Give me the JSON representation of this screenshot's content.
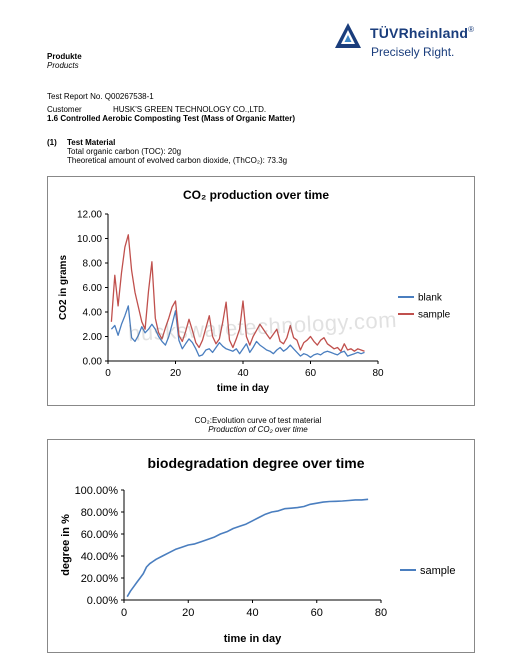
{
  "header": {
    "section_label": "Produkte",
    "section_label_italic": "Products",
    "brand_name": "TÜVRheinland",
    "brand_mark": "®",
    "slogan": "Precisely Right."
  },
  "report": {
    "report_no": "Test Report No. Q00267538-1",
    "customer_label": "Customer",
    "customer_name": "HUSK'S GREEN TECHNOLOGY CO.,LTD.",
    "test_title": "1.6 Controlled Aerobic Composting Test (Mass of Organic Matter)",
    "material_num": "(1)",
    "material_heading": "Test Material",
    "toc_line": "Total organic carbon (TOC):  20g",
    "theoretical_line": "Theoretical amount of evolved carbon dioxide, (ThCO₂): 73.3g"
  },
  "caption": {
    "line1": "CO₂:Evolution curve of test material",
    "line2": "Production of CO₂ over time"
  },
  "watermark": "huskswaretechnology.com",
  "chart_data": [
    {
      "type": "line",
      "title": "CO₂ production over time",
      "xlabel": "time in day",
      "ylabel": "CO2 in grams",
      "xlim": [
        0,
        80
      ],
      "ylim": [
        0,
        12
      ],
      "x_ticks": [
        "0",
        "20",
        "40",
        "60",
        "80"
      ],
      "y_ticks": [
        "0.00",
        "2.00",
        "4.00",
        "6.00",
        "8.00",
        "10.00",
        "12.00"
      ],
      "legend_position": "right",
      "series": [
        {
          "name": "blank",
          "color": "#4a7ebf",
          "x": [
            1,
            2,
            3,
            4,
            5,
            6,
            7,
            8,
            9,
            10,
            11,
            12,
            13,
            14,
            15,
            16,
            17,
            18,
            19,
            20,
            21,
            22,
            23,
            24,
            25,
            26,
            27,
            28,
            29,
            30,
            31,
            32,
            33,
            34,
            35,
            36,
            37,
            38,
            39,
            40,
            41,
            42,
            43,
            44,
            45,
            46,
            47,
            48,
            49,
            50,
            51,
            52,
            53,
            54,
            55,
            56,
            57,
            58,
            59,
            60,
            61,
            62,
            63,
            64,
            65,
            66,
            67,
            68,
            69,
            70,
            71,
            72,
            73,
            74,
            75,
            76
          ],
          "y": [
            2.6,
            2.9,
            2.1,
            3.0,
            3.7,
            4.5,
            1.9,
            1.6,
            2.1,
            2.8,
            2.3,
            2.6,
            3.0,
            2.6,
            2.0,
            1.6,
            1.3,
            2.0,
            3.0,
            4.1,
            1.7,
            1.0,
            1.4,
            1.8,
            1.5,
            1.0,
            0.4,
            0.5,
            0.9,
            1.0,
            0.7,
            1.1,
            1.5,
            1.2,
            1.0,
            0.9,
            0.8,
            1.0,
            0.6,
            1.0,
            1.4,
            0.7,
            1.1,
            1.6,
            1.3,
            1.1,
            0.9,
            0.8,
            0.6,
            0.9,
            1.1,
            0.8,
            1.0,
            1.3,
            1.0,
            0.7,
            0.4,
            0.6,
            0.5,
            0.3,
            0.5,
            0.6,
            0.5,
            0.7,
            0.8,
            0.7,
            0.6,
            0.5,
            0.7,
            0.8,
            0.4,
            0.5,
            0.6,
            0.7,
            0.6,
            0.7
          ]
        },
        {
          "name": "sample",
          "color": "#c0504d",
          "x": [
            1,
            2,
            3,
            4,
            5,
            6,
            7,
            8,
            9,
            10,
            11,
            12,
            13,
            14,
            15,
            16,
            17,
            18,
            19,
            20,
            21,
            22,
            23,
            24,
            25,
            26,
            27,
            28,
            29,
            30,
            31,
            32,
            33,
            34,
            35,
            36,
            37,
            38,
            39,
            40,
            41,
            42,
            43,
            44,
            45,
            46,
            47,
            48,
            49,
            50,
            51,
            52,
            53,
            54,
            55,
            56,
            57,
            58,
            59,
            60,
            61,
            62,
            63,
            64,
            65,
            66,
            67,
            68,
            69,
            70,
            71,
            72,
            73,
            74,
            75,
            76
          ],
          "y": [
            3.2,
            7.0,
            4.5,
            7.2,
            9.3,
            10.3,
            7.4,
            5.6,
            4.4,
            3.2,
            2.6,
            5.7,
            8.1,
            3.5,
            2.3,
            1.8,
            2.7,
            3.5,
            4.4,
            4.9,
            2.1,
            1.6,
            2.4,
            3.4,
            2.5,
            1.5,
            1.1,
            1.7,
            2.7,
            3.7,
            2.0,
            1.4,
            1.8,
            3.2,
            4.8,
            1.7,
            1.1,
            1.8,
            2.6,
            4.9,
            2.0,
            1.3,
            2.0,
            2.5,
            3.0,
            2.6,
            2.2,
            1.8,
            2.2,
            2.6,
            1.6,
            1.4,
            1.9,
            2.9,
            1.9,
            1.7,
            0.9,
            1.5,
            1.7,
            2.0,
            1.6,
            1.3,
            1.7,
            1.9,
            1.4,
            1.2,
            1.0,
            1.1,
            0.8,
            1.4,
            0.9,
            1.0,
            0.8,
            1.0,
            0.9,
            0.8
          ]
        }
      ]
    },
    {
      "type": "line",
      "title": "biodegradation degree over time",
      "xlabel": "time in day",
      "ylabel": "degree in %",
      "xlim": [
        0,
        80
      ],
      "ylim": [
        0,
        100
      ],
      "x_ticks": [
        "0",
        "20",
        "40",
        "60",
        "80"
      ],
      "y_ticks": [
        "0.00%",
        "20.00%",
        "40.00%",
        "60.00%",
        "80.00%",
        "100.00%"
      ],
      "legend_position": "right",
      "series": [
        {
          "name": "sample",
          "color": "#4a7ebf",
          "x": [
            1,
            2,
            3,
            4,
            5,
            6,
            7,
            8,
            9,
            10,
            12,
            14,
            16,
            18,
            20,
            22,
            24,
            26,
            28,
            30,
            32,
            34,
            36,
            38,
            40,
            42,
            44,
            46,
            48,
            50,
            52,
            54,
            56,
            58,
            60,
            62,
            64,
            66,
            68,
            70,
            72,
            74,
            76
          ],
          "y": [
            3,
            8,
            12,
            16,
            20,
            24,
            30,
            33,
            35,
            37,
            40,
            43,
            46,
            48,
            50,
            51,
            53,
            55,
            57,
            60,
            62,
            65,
            67,
            69,
            72,
            75,
            78,
            80,
            81,
            83,
            83.5,
            84,
            85,
            87,
            88,
            89,
            89.5,
            89.7,
            90,
            90.5,
            91,
            91,
            91.5
          ]
        }
      ]
    }
  ]
}
